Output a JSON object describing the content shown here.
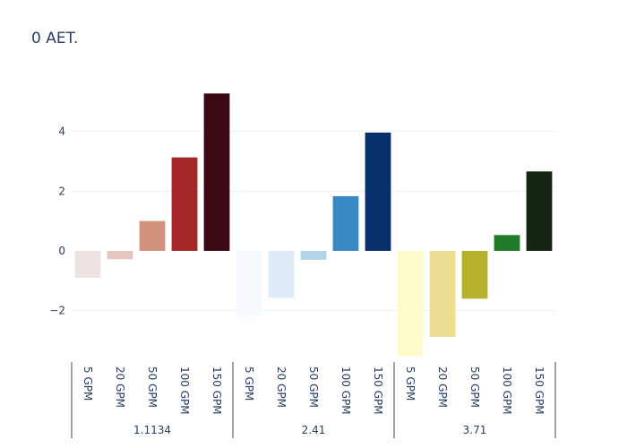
{
  "chart_data": {
    "type": "bar",
    "title": "0 AET.",
    "xlabel": "",
    "ylabel": "",
    "ylim": [
      -3.6,
      5.4
    ],
    "yticks": [
      -2,
      0,
      2,
      4
    ],
    "ytick_labels": [
      "−2",
      "0",
      "2",
      "4"
    ],
    "grid": true,
    "groups": [
      {
        "label": "1.1134",
        "categories": [
          "5 GPM",
          "20 GPM",
          "50 GPM",
          "100 GPM",
          "150 GPM"
        ],
        "values": [
          -0.9,
          -0.28,
          1.0,
          3.13,
          5.27
        ],
        "colors": [
          "#ede3e3",
          "#e4c6c0",
          "#d3927c",
          "#a32726",
          "#3b0a14"
        ]
      },
      {
        "label": "2.41",
        "categories": [
          "5 GPM",
          "20 GPM",
          "50 GPM",
          "100 GPM",
          "150 GPM"
        ],
        "values": [
          -2.18,
          -1.57,
          -0.3,
          1.83,
          3.96
        ],
        "colors": [
          "#f6f9fe",
          "#dfebf6",
          "#b3d3e9",
          "#3889c2",
          "#062f6b"
        ]
      },
      {
        "label": "3.71",
        "categories": [
          "5 GPM",
          "20 GPM",
          "50 GPM",
          "100 GPM",
          "150 GPM"
        ],
        "values": [
          -3.52,
          -2.88,
          -1.6,
          0.53,
          2.66
        ],
        "colors": [
          "#fefbca",
          "#eddf92",
          "#b6b22b",
          "#21792a",
          "#172514"
        ]
      }
    ]
  }
}
